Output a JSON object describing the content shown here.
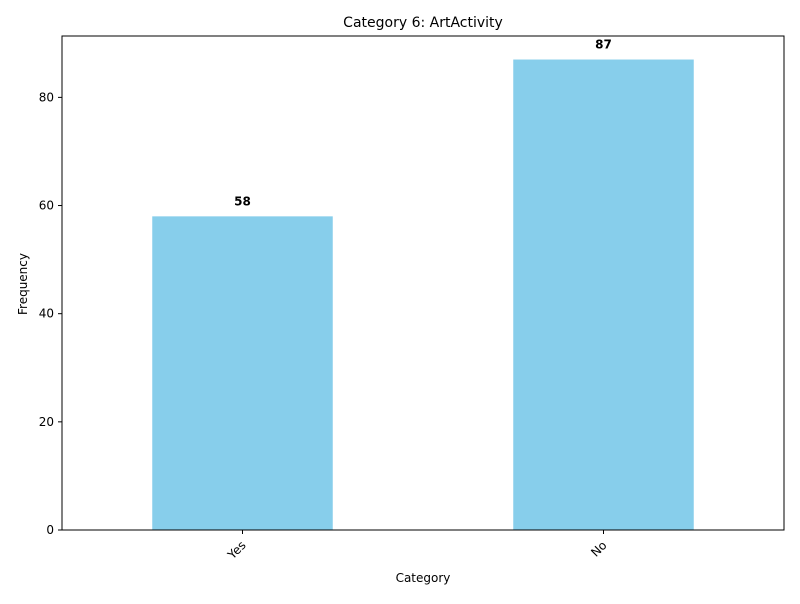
{
  "chart_data": {
    "type": "bar",
    "title": "Category 6: ArtActivity",
    "xlabel": "Category",
    "ylabel": "Frequency",
    "categories": [
      "Yes",
      "No"
    ],
    "values": [
      58,
      87
    ],
    "data_labels": [
      "58",
      "87"
    ],
    "ylim": [
      0,
      91.35
    ],
    "yticks": [
      0,
      20,
      40,
      60,
      80
    ],
    "ytick_labels": [
      "0",
      "20",
      "40",
      "60",
      "80"
    ],
    "bar_color": "#87CEEB",
    "grid": false,
    "legend": "none"
  }
}
